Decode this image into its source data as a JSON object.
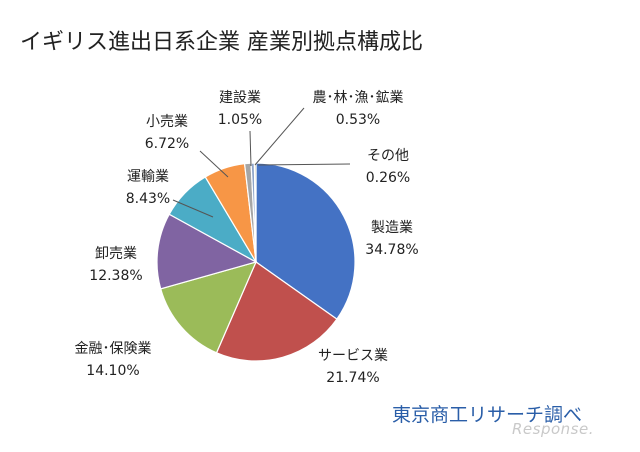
{
  "title": "イギリス進出日系企業 産業別拠点構成比",
  "source": "東京商工リサーチ調べ",
  "watermark": "Response.",
  "chart_data": {
    "type": "pie",
    "title": "イギリス進出日系企業 産業別拠点構成比",
    "slices": [
      {
        "label": "製造業",
        "value": 34.78,
        "value_text": "34.78%",
        "color": "#4472c4"
      },
      {
        "label": "サービス業",
        "value": 21.74,
        "value_text": "21.74%",
        "color": "#c0504d"
      },
      {
        "label": "金融･保険業",
        "value": 14.1,
        "value_text": "14.10%",
        "color": "#9bbb59"
      },
      {
        "label": "卸売業",
        "value": 12.38,
        "value_text": "12.38%",
        "color": "#8064a2"
      },
      {
        "label": "運輸業",
        "value": 8.43,
        "value_text": "8.43%",
        "color": "#4bacc6"
      },
      {
        "label": "小売業",
        "value": 6.72,
        "value_text": "6.72%",
        "color": "#f79646"
      },
      {
        "label": "建設業",
        "value": 1.05,
        "value_text": "1.05%",
        "color": "#a6a6a6"
      },
      {
        "label": "農･林･漁･鉱業",
        "value": 0.53,
        "value_text": "0.53%",
        "color": "#8ea4c8"
      },
      {
        "label": "その他",
        "value": 0.26,
        "value_text": "0.26%",
        "color": "#c4bd97"
      }
    ]
  }
}
